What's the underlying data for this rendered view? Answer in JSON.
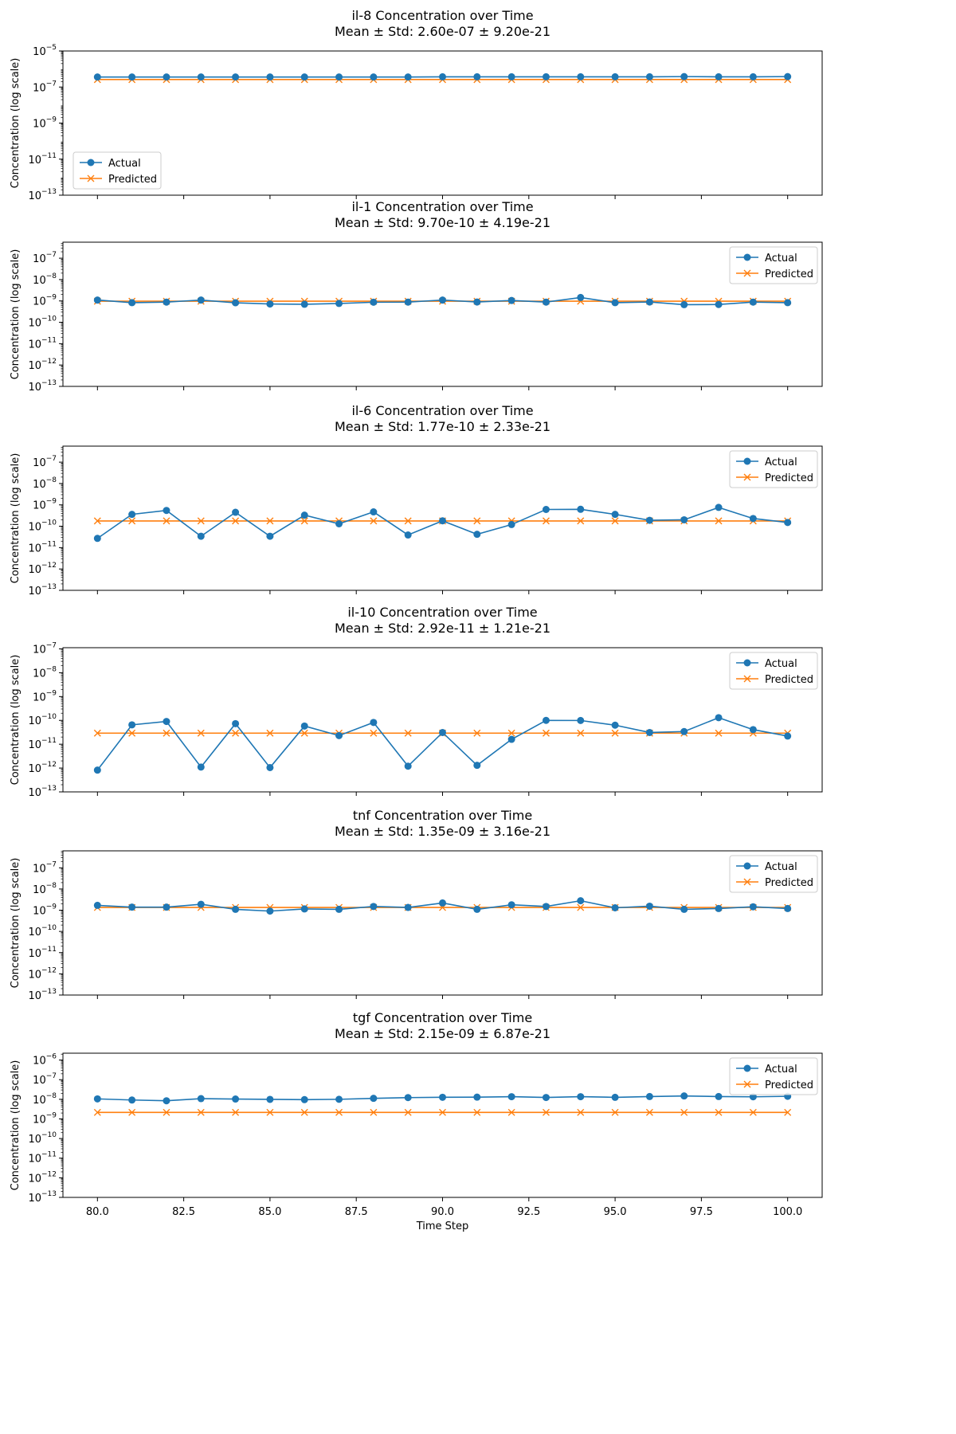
{
  "figure": {
    "xlabel": "Time Step",
    "ylabel": "Concentration (log scale)"
  },
  "chart_data": [
    {
      "type": "line",
      "title": "il-8 Concentration over Time",
      "subtitle": "Mean ± Std: 2.60e-07 ± 9.20e-21",
      "ylim_exp": [
        -13,
        -5
      ],
      "yticks_exp": [
        -13,
        -11,
        -9,
        -7,
        -5
      ],
      "legend_loc": "lower-left",
      "series": [
        {
          "name": "Actual",
          "color": "#1f77b4",
          "marker": "circle",
          "values": [
            3.6e-07,
            3.6e-07,
            3.6e-07,
            3.6e-07,
            3.6e-07,
            3.6e-07,
            3.6e-07,
            3.6e-07,
            3.6e-07,
            3.6e-07,
            3.7e-07,
            3.7e-07,
            3.7e-07,
            3.7e-07,
            3.7e-07,
            3.7e-07,
            3.7e-07,
            3.8e-07,
            3.7e-07,
            3.7e-07,
            3.8e-07
          ]
        },
        {
          "name": "Predicted",
          "color": "#ff7f0e",
          "marker": "x",
          "values": [
            2.6e-07,
            2.6e-07,
            2.6e-07,
            2.6e-07,
            2.6e-07,
            2.6e-07,
            2.6e-07,
            2.6e-07,
            2.6e-07,
            2.6e-07,
            2.6e-07,
            2.6e-07,
            2.6e-07,
            2.6e-07,
            2.6e-07,
            2.6e-07,
            2.6e-07,
            2.6e-07,
            2.6e-07,
            2.6e-07,
            2.6e-07
          ]
        }
      ]
    },
    {
      "type": "line",
      "title": "il-1 Concentration over Time",
      "subtitle": "Mean ± Std: 9.70e-10 ± 4.19e-21",
      "ylim_exp": [
        -13,
        -6.25
      ],
      "yticks_exp": [
        -13,
        -12,
        -11,
        -10,
        -9,
        -8,
        -7
      ],
      "legend_loc": "upper-right",
      "series": [
        {
          "name": "Actual",
          "color": "#1f77b4",
          "marker": "circle",
          "values": [
            1.1e-09,
            8.3e-10,
            8.8e-10,
            1.1e-09,
            8.2e-10,
            7.2e-10,
            7e-10,
            7.6e-10,
            8.7e-10,
            8.8e-10,
            1.1e-09,
            8.9e-10,
            1.05e-09,
            8.8e-10,
            1.45e-09,
            8.3e-10,
            8.9e-10,
            6.7e-10,
            6.8e-10,
            8.8e-10,
            8.3e-10
          ]
        },
        {
          "name": "Predicted",
          "color": "#ff7f0e",
          "marker": "x",
          "values": [
            9.7e-10,
            9.7e-10,
            9.7e-10,
            9.7e-10,
            9.7e-10,
            9.7e-10,
            9.7e-10,
            9.7e-10,
            9.7e-10,
            9.7e-10,
            9.7e-10,
            9.7e-10,
            9.7e-10,
            9.7e-10,
            9.7e-10,
            9.7e-10,
            9.7e-10,
            9.7e-10,
            9.7e-10,
            9.7e-10,
            9.7e-10
          ]
        }
      ]
    },
    {
      "type": "line",
      "title": "il-6 Concentration over Time",
      "subtitle": "Mean ± Std: 1.77e-10 ± 2.33e-21",
      "ylim_exp": [
        -13,
        -6.25
      ],
      "yticks_exp": [
        -13,
        -12,
        -11,
        -10,
        -9,
        -8,
        -7
      ],
      "legend_loc": "upper-right",
      "series": [
        {
          "name": "Actual",
          "color": "#1f77b4",
          "marker": "circle",
          "values": [
            2.7e-11,
            3.6e-10,
            5.5e-10,
            3.4e-11,
            4.5e-10,
            3.4e-11,
            3.3e-10,
            1.3e-10,
            4.7e-10,
            3.9e-11,
            1.8e-10,
            4.2e-11,
            1.2e-10,
            6.1e-10,
            6.2e-10,
            3.6e-10,
            1.9e-10,
            2e-10,
            7.6e-10,
            2.3e-10,
            1.5e-10
          ]
        },
        {
          "name": "Predicted",
          "color": "#ff7f0e",
          "marker": "x",
          "values": [
            1.77e-10,
            1.77e-10,
            1.77e-10,
            1.77e-10,
            1.77e-10,
            1.77e-10,
            1.77e-10,
            1.77e-10,
            1.77e-10,
            1.77e-10,
            1.77e-10,
            1.77e-10,
            1.77e-10,
            1.77e-10,
            1.77e-10,
            1.77e-10,
            1.77e-10,
            1.77e-10,
            1.77e-10,
            1.77e-10,
            1.77e-10
          ]
        }
      ]
    },
    {
      "type": "line",
      "title": "il-10 Concentration over Time",
      "subtitle": "Mean ± Std: 2.92e-11 ± 1.21e-21",
      "ylim_exp": [
        -13,
        -6.95
      ],
      "yticks_exp": [
        -13,
        -12,
        -11,
        -10,
        -9,
        -8,
        -7
      ],
      "legend_loc": "upper-right",
      "series": [
        {
          "name": "Actual",
          "color": "#1f77b4",
          "marker": "circle",
          "values": [
            8.2e-13,
            6.5e-11,
            9e-11,
            1.1e-12,
            7.3e-11,
            1.05e-12,
            5.8e-11,
            2.3e-11,
            8.2e-11,
            1.2e-12,
            3.1e-11,
            1.3e-12,
            1.6e-11,
            1e-10,
            9.9e-11,
            6.3e-11,
            3.1e-11,
            3.4e-11,
            1.3e-10,
            4.1e-11,
            2.2e-11
          ]
        },
        {
          "name": "Predicted",
          "color": "#ff7f0e",
          "marker": "x",
          "values": [
            2.92e-11,
            2.92e-11,
            2.92e-11,
            2.92e-11,
            2.92e-11,
            2.92e-11,
            2.92e-11,
            2.92e-11,
            2.92e-11,
            2.92e-11,
            2.92e-11,
            2.92e-11,
            2.92e-11,
            2.92e-11,
            2.92e-11,
            2.92e-11,
            2.92e-11,
            2.92e-11,
            2.92e-11,
            2.92e-11,
            2.92e-11
          ]
        }
      ]
    },
    {
      "type": "line",
      "title": "tnf Concentration over Time",
      "subtitle": "Mean ± Std: 1.35e-09 ± 3.16e-21",
      "ylim_exp": [
        -13,
        -6.2
      ],
      "yticks_exp": [
        -13,
        -12,
        -11,
        -10,
        -9,
        -8,
        -7
      ],
      "legend_loc": "upper-right",
      "series": [
        {
          "name": "Actual",
          "color": "#1f77b4",
          "marker": "circle",
          "values": [
            1.7e-09,
            1.4e-09,
            1.4e-09,
            1.9e-09,
            1.1e-09,
            9.1e-10,
            1.15e-09,
            1.1e-09,
            1.5e-09,
            1.35e-09,
            2.2e-09,
            1.1e-09,
            1.8e-09,
            1.5e-09,
            2.8e-09,
            1.3e-09,
            1.55e-09,
            1.1e-09,
            1.2e-09,
            1.45e-09,
            1.2e-09
          ]
        },
        {
          "name": "Predicted",
          "color": "#ff7f0e",
          "marker": "x",
          "values": [
            1.35e-09,
            1.35e-09,
            1.35e-09,
            1.35e-09,
            1.35e-09,
            1.35e-09,
            1.35e-09,
            1.35e-09,
            1.35e-09,
            1.35e-09,
            1.35e-09,
            1.35e-09,
            1.35e-09,
            1.35e-09,
            1.35e-09,
            1.35e-09,
            1.35e-09,
            1.35e-09,
            1.35e-09,
            1.35e-09,
            1.35e-09
          ]
        }
      ]
    },
    {
      "type": "line",
      "title": "tgf Concentration over Time",
      "subtitle": "Mean ± Std: 2.15e-09 ± 6.87e-21",
      "ylim_exp": [
        -13,
        -5.65
      ],
      "yticks_exp": [
        -13,
        -12,
        -11,
        -10,
        -9,
        -8,
        -7,
        -6
      ],
      "legend_loc": "upper-right",
      "series": [
        {
          "name": "Actual",
          "color": "#1f77b4",
          "marker": "circle",
          "values": [
            1.05e-08,
            9.2e-09,
            8.4e-09,
            1.08e-08,
            1.03e-08,
            9.9e-09,
            9.6e-09,
            1e-08,
            1.12e-08,
            1.22e-08,
            1.27e-08,
            1.29e-08,
            1.36e-08,
            1.24e-08,
            1.36e-08,
            1.26e-08,
            1.38e-08,
            1.48e-08,
            1.38e-08,
            1.34e-08,
            1.42e-08
          ]
        },
        {
          "name": "Predicted",
          "color": "#ff7f0e",
          "marker": "x",
          "values": [
            2.15e-09,
            2.15e-09,
            2.15e-09,
            2.15e-09,
            2.15e-09,
            2.15e-09,
            2.15e-09,
            2.15e-09,
            2.15e-09,
            2.15e-09,
            2.15e-09,
            2.15e-09,
            2.15e-09,
            2.15e-09,
            2.15e-09,
            2.15e-09,
            2.15e-09,
            2.15e-09,
            2.15e-09,
            2.15e-09,
            2.15e-09
          ]
        }
      ]
    }
  ],
  "x": [
    80,
    81,
    82,
    83,
    84,
    85,
    86,
    87,
    88,
    89,
    90,
    91,
    92,
    93,
    94,
    95,
    96,
    97,
    98,
    99,
    100
  ],
  "xlim": [
    79,
    101
  ],
  "xticks": [
    "80.0",
    "82.5",
    "85.0",
    "87.5",
    "90.0",
    "92.5",
    "95.0",
    "97.5",
    "100.0"
  ],
  "xtick_values": [
    80,
    82.5,
    85,
    87.5,
    90,
    92.5,
    95,
    97.5,
    100
  ]
}
